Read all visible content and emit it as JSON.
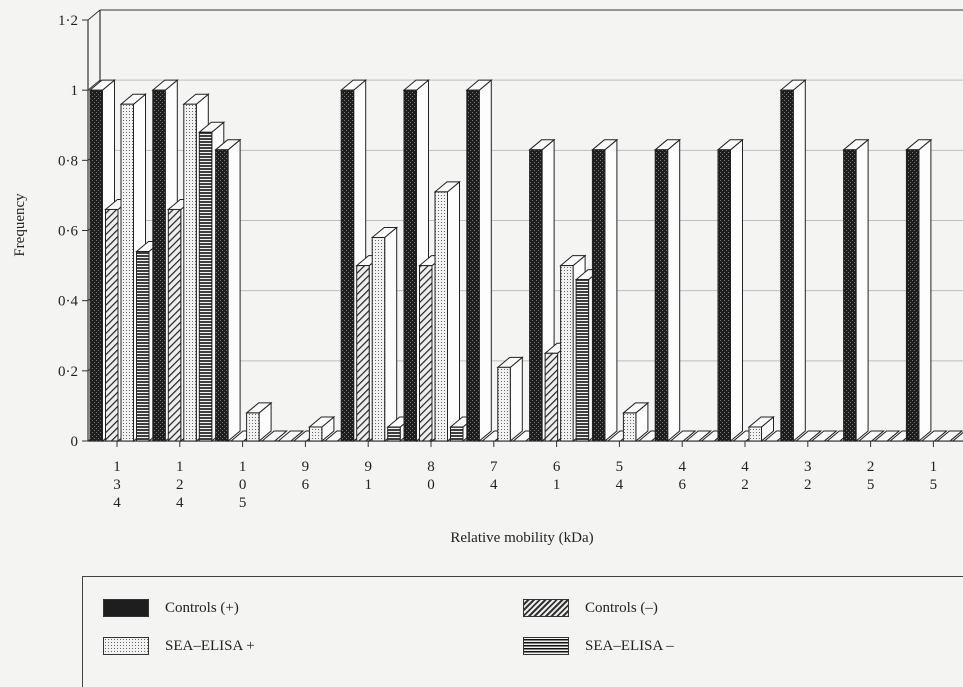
{
  "chart_data": {
    "type": "bar",
    "xlabel": "Relative mobility (kDa)",
    "ylabel": "Frequency",
    "ylim": [
      0,
      1.2
    ],
    "yticks": [
      "0",
      "0·2",
      "0·4",
      "0·6",
      "0·8",
      "1",
      "1·2"
    ],
    "categories": [
      "134",
      "124",
      "105",
      "96",
      "91",
      "80",
      "74",
      "61",
      "54",
      "46",
      "42",
      "32",
      "25",
      "15"
    ],
    "series": [
      {
        "name": "Controls (+)",
        "values": [
          1.0,
          1.0,
          0.83,
          0,
          1.0,
          1.0,
          1.0,
          0.83,
          0.83,
          0.83,
          0.83,
          1.0,
          0.83,
          0.83
        ]
      },
      {
        "name": "Controls (–)",
        "values": [
          0.66,
          0.66,
          0,
          0,
          0.5,
          0.5,
          0,
          0.25,
          0,
          0,
          0,
          0,
          0,
          0
        ]
      },
      {
        "name": "SEA–ELISA +",
        "values": [
          0.96,
          0.96,
          0.08,
          0.04,
          0.58,
          0.71,
          0.21,
          0.5,
          0.08,
          0,
          0.04,
          0,
          0,
          0
        ]
      },
      {
        "name": "SEA–ELISA –",
        "values": [
          0.54,
          0.88,
          0,
          0,
          0.04,
          0.04,
          0,
          0.46,
          0,
          0,
          0,
          0,
          0,
          0
        ]
      }
    ],
    "grid": true,
    "legend_position": "bottom"
  },
  "colors": {
    "controls_pos": "#2b2b2b",
    "controls_neg": "#8a8a8a",
    "sea_pos": "#cfcfcf",
    "sea_neg": "#5a5a5a",
    "top_face": "#fafafa",
    "side_face": "#fdfdfd",
    "grid": "#bdbdbd"
  }
}
